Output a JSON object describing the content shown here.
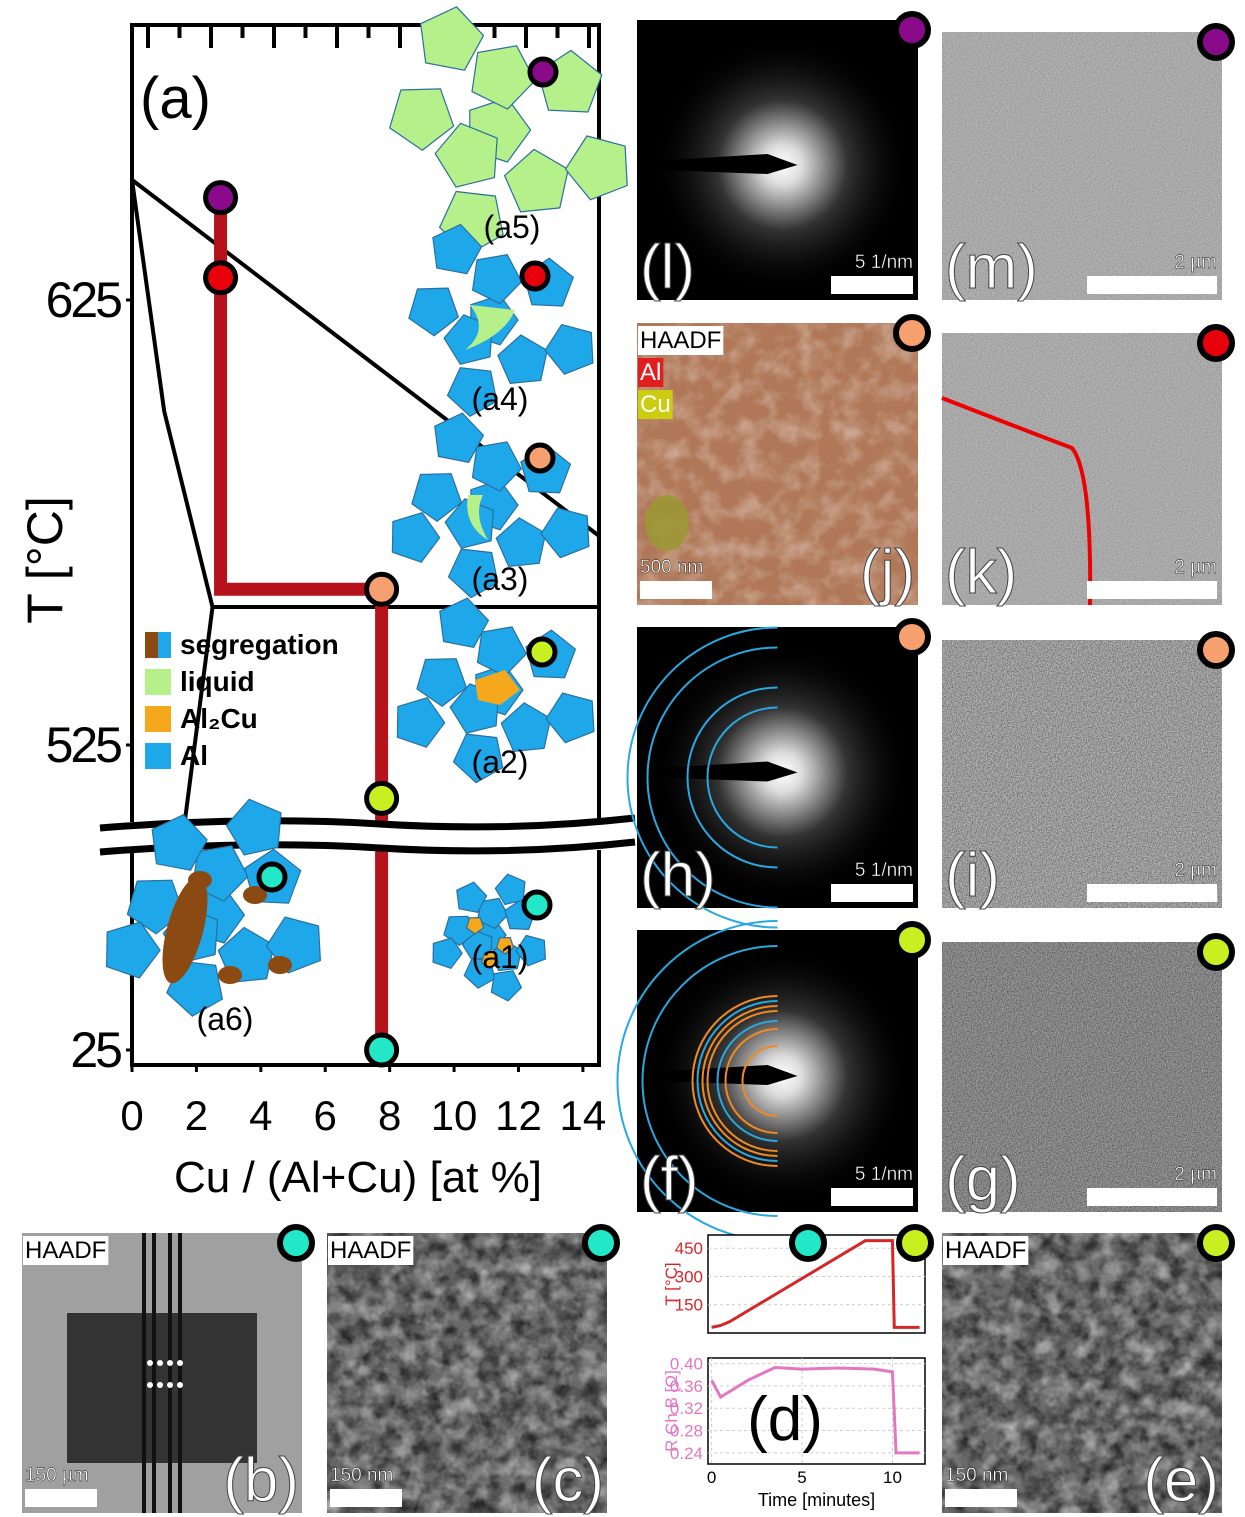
{
  "chart_data": [
    {
      "type": "phase",
      "title": "(a)",
      "x_label": "Cu / (Al+Cu) [at %]",
      "y_label": "T [°C]",
      "xlim": [
        0,
        14.5
      ],
      "xticks": [
        0,
        2,
        4,
        6,
        8,
        10,
        12,
        14
      ],
      "yticks": [
        25,
        525,
        625
      ],
      "boundaries": [
        {
          "x": [
            0,
            14.5
          ],
          "values": [
            652,
            572
          ]
        },
        {
          "x": [
            0,
            1,
            2.5
          ],
          "values": [
            652,
            600,
            556
          ]
        },
        {
          "x": [
            2.5,
            14.5
          ],
          "values": [
            556,
            556
          ]
        },
        {
          "x": [
            2.5,
            1.5
          ],
          "values": [
            556,
            500
          ]
        }
      ],
      "path": {
        "color": "#b5121b",
        "x": [
          2.75,
          2.75,
          7.75,
          7.75
        ],
        "values": [
          648,
          560,
          560,
          25
        ]
      },
      "points": {
        "x": [
          2.75,
          2.75,
          7.75,
          7.75,
          7.75
        ],
        "values": [
          648,
          630,
          560,
          513,
          25
        ],
        "colors": [
          "#8b0a8b",
          "#e8000b",
          "#f5a06e",
          "#c8f020",
          "#22e8c8"
        ]
      },
      "legend": [
        {
          "name": "segregation",
          "color": "#8b4a12"
        },
        {
          "name": "liquid",
          "color": "#b6f08a"
        },
        {
          "name": "Al₂Cu",
          "color": "#f5a81c"
        },
        {
          "name": "Al",
          "color": "#1ea8ea"
        }
      ],
      "sketches": [
        "(a1)",
        "(a2)",
        "(a3)",
        "(a4)",
        "(a5)",
        "(a6)"
      ]
    },
    {
      "type": "line",
      "y_label": "T [°C]",
      "xlim": [
        -0.2,
        11.8
      ],
      "ylim": [
        0,
        520
      ],
      "yticks": [
        150,
        300,
        450
      ],
      "color": "#d62728",
      "grid": true,
      "x": [
        0,
        0.5,
        1,
        8.5,
        10,
        10.1,
        11.5
      ],
      "values": [
        30,
        40,
        60,
        490,
        490,
        30,
        30
      ]
    },
    {
      "type": "line",
      "title": "(d)",
      "y_label": "R Ch B [Ω]",
      "x_label": "Time [minutes]",
      "xlim": [
        -0.2,
        11.8
      ],
      "xticks": [
        0,
        5,
        10
      ],
      "ylim": [
        0.22,
        0.41
      ],
      "yticks": [
        0.24,
        0.28,
        0.32,
        0.36,
        {
          "value": 0.4,
          "label": "0.40"
        }
      ],
      "color": "#e377c2",
      "grid": true,
      "x": [
        0,
        0.5,
        1,
        2,
        3.5,
        5,
        7,
        9,
        10,
        10.2,
        11.5
      ],
      "values": [
        0.37,
        0.34,
        0.35,
        0.37,
        0.393,
        0.39,
        0.392,
        0.39,
        0.385,
        0.24,
        0.24
      ]
    }
  ],
  "panels": [
    {
      "label": "(l)",
      "scale": "5 1/nm"
    },
    {
      "label": "(m)",
      "scale": "2 µm"
    },
    {
      "label": "(j)",
      "scale": "500 nm",
      "tags": [
        "HAADF",
        "Al",
        "Cu"
      ]
    },
    {
      "label": "(k)",
      "scale": "2 µm"
    },
    {
      "label": "(h)",
      "scale": "5 1/nm"
    },
    {
      "label": "(i)",
      "scale": "2 µm"
    },
    {
      "label": "(f)",
      "scale": "5 1/nm"
    },
    {
      "label": "(g)",
      "scale": "2 µm"
    },
    {
      "label": "(b)",
      "scale": "150 µm",
      "tags": [
        "HAADF"
      ]
    },
    {
      "label": "(c)",
      "scale": "150 nm",
      "tags": [
        "HAADF"
      ]
    },
    {
      "label": "(e)",
      "scale": "150 nm",
      "tags": [
        "HAADF"
      ]
    }
  ]
}
